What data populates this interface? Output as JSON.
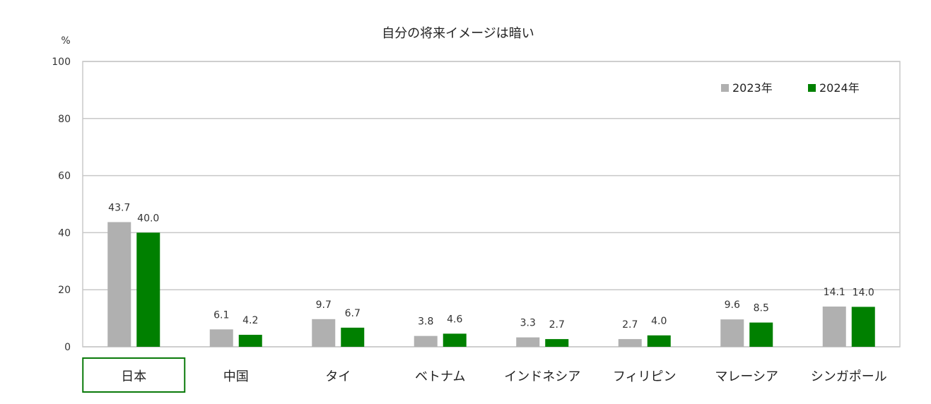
{
  "chart_data": {
    "type": "bar",
    "title": "自分の将来イメージは暗い",
    "ylabel": "%",
    "ylim": [
      0,
      100
    ],
    "yticks": [
      0,
      20,
      40,
      60,
      80,
      100
    ],
    "grid": true,
    "legend_position": "top-right",
    "highlighted_category": "日本",
    "categories": [
      "日本",
      "中国",
      "タイ",
      "ベトナム",
      "インドネシア",
      "フィリピン",
      "マレーシア",
      "シンガポール"
    ],
    "series": [
      {
        "name": "2023年",
        "color": "#b0b0b0",
        "values": [
          43.7,
          6.1,
          9.7,
          3.8,
          3.3,
          2.7,
          9.6,
          14.1
        ],
        "labels": [
          "43.7",
          "6.1",
          "9.7",
          "3.8",
          "3.3",
          "2.7",
          "9.6",
          "14.1"
        ]
      },
      {
        "name": "2024年",
        "color": "#008000",
        "values": [
          40.0,
          4.2,
          6.7,
          4.6,
          2.7,
          4.0,
          8.5,
          14.0
        ],
        "labels": [
          "40.0",
          "4.2",
          "6.7",
          "4.6",
          "2.7",
          "4.0",
          "8.5",
          "14.0"
        ]
      }
    ]
  }
}
